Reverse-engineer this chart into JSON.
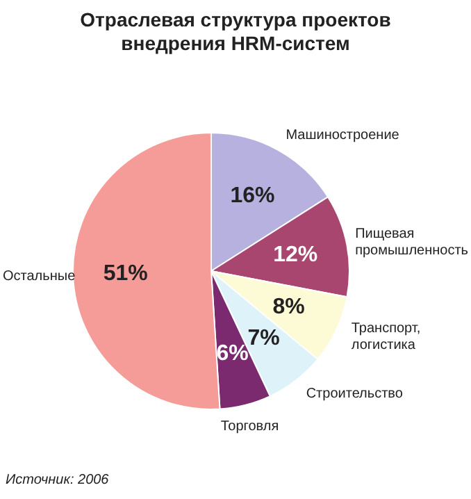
{
  "chart_data": {
    "type": "pie",
    "title": "Отраслевая структура проектов внедрения HRM-систем",
    "categories": [
      "Машиностроение",
      "Пищевая промышленность",
      "Транспорт, логистика",
      "Строительство",
      "Торговля",
      "Остальные"
    ],
    "values": [
      16,
      12,
      8,
      7,
      6,
      51
    ],
    "colors": [
      "#b6b1de",
      "#a8466f",
      "#fdfbd6",
      "#def2fa",
      "#7c2a70",
      "#f59b98"
    ],
    "value_labels": [
      "16%",
      "12%",
      "8%",
      "7%",
      "6%",
      "51%"
    ],
    "legend": false,
    "annotations": [
      "Источник: 2006"
    ]
  }
}
